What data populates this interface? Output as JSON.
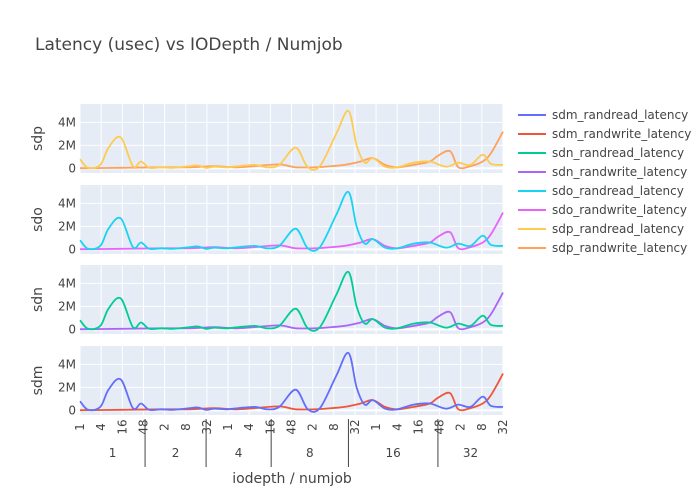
{
  "chart_data": {
    "type": "line",
    "title": "Latency (usec) vs IODepth / Numjob",
    "xlabel": "iodepth / numjob",
    "x_ticks": [
      "1",
      "4",
      "16",
      "48",
      "2",
      "8",
      "32",
      "1",
      "4",
      "16",
      "48",
      "2",
      "8",
      "32",
      "1",
      "4",
      "16",
      "48",
      "2",
      "8",
      "32"
    ],
    "groups": [
      {
        "name": "1",
        "span": [
          0,
          16
        ]
      },
      {
        "name": "2",
        "span": [
          16,
          31
        ]
      },
      {
        "name": "4",
        "span": [
          31,
          47
        ]
      },
      {
        "name": "8",
        "span": [
          47,
          66
        ]
      },
      {
        "name": "16",
        "span": [
          66,
          88
        ]
      },
      {
        "name": "32",
        "span": [
          88,
          104
        ]
      }
    ],
    "y_ticks": [
      0,
      2,
      4
    ],
    "y_tick_labels": [
      "0",
      "2M",
      "4M"
    ],
    "ylim": [
      -0.4,
      5.6
    ],
    "x_range": [
      0,
      104
    ],
    "grid": true,
    "legend_position": "right",
    "subplots": [
      {
        "label": "sdp",
        "series": [
          "sdp_randread_latency",
          "sdp_randwrite_latency"
        ]
      },
      {
        "label": "sdo",
        "series": [
          "sdo_randread_latency",
          "sdo_randwrite_latency"
        ]
      },
      {
        "label": "sdn",
        "series": [
          "sdn_randread_latency",
          "sdn_randwrite_latency"
        ]
      },
      {
        "label": "sdm",
        "series": [
          "sdm_randread_latency",
          "sdm_randwrite_latency"
        ]
      }
    ],
    "series": [
      {
        "name": "sdm_randread_latency",
        "color": "#636efa"
      },
      {
        "name": "sdm_randwrite_latency",
        "color": "#EF553B"
      },
      {
        "name": "sdn_randread_latency",
        "color": "#00cc96"
      },
      {
        "name": "sdn_randwrite_latency",
        "color": "#ab63fa"
      },
      {
        "name": "sdo_randread_latency",
        "color": "#19d3f3"
      },
      {
        "name": "sdo_randwrite_latency",
        "color": "#e763fa"
      },
      {
        "name": "sdp_randread_latency",
        "color": "#FECB52"
      },
      {
        "name": "sdp_randwrite_latency",
        "color": "#FFA15A"
      }
    ],
    "read_values": [
      [
        0,
        0.8
      ],
      [
        2,
        0.05
      ],
      [
        5,
        0.3
      ],
      [
        7,
        1.8
      ],
      [
        10,
        2.7
      ],
      [
        13,
        0.2
      ],
      [
        15,
        0.6
      ],
      [
        17,
        0.05
      ],
      [
        20,
        0.1
      ],
      [
        23,
        0.05
      ],
      [
        27,
        0.2
      ],
      [
        29,
        0.25
      ],
      [
        31,
        0.05
      ],
      [
        33,
        0.15
      ],
      [
        36,
        0.1
      ],
      [
        39,
        0.2
      ],
      [
        43,
        0.3
      ],
      [
        46,
        0.1
      ],
      [
        49,
        0.3
      ],
      [
        53,
        1.8
      ],
      [
        56,
        0.1
      ],
      [
        59,
        0.2
      ],
      [
        63,
        3.0
      ],
      [
        66,
        5.0
      ],
      [
        68,
        2.0
      ],
      [
        70,
        0.5
      ],
      [
        72,
        0.9
      ],
      [
        75,
        0.15
      ],
      [
        78,
        0.1
      ],
      [
        82,
        0.5
      ],
      [
        86,
        0.6
      ],
      [
        90,
        0.15
      ],
      [
        93,
        0.5
      ],
      [
        96,
        0.3
      ],
      [
        99,
        1.2
      ],
      [
        101,
        0.4
      ],
      [
        104,
        0.3
      ]
    ],
    "write_values": [
      [
        0,
        0.02
      ],
      [
        10,
        0.05
      ],
      [
        20,
        0.1
      ],
      [
        27,
        0.1
      ],
      [
        33,
        0.2
      ],
      [
        38,
        0.1
      ],
      [
        43,
        0.2
      ],
      [
        49,
        0.35
      ],
      [
        53,
        0.1
      ],
      [
        58,
        0.1
      ],
      [
        62,
        0.2
      ],
      [
        65,
        0.3
      ],
      [
        69,
        0.6
      ],
      [
        72,
        0.9
      ],
      [
        75,
        0.3
      ],
      [
        78,
        0.1
      ],
      [
        82,
        0.3
      ],
      [
        86,
        0.6
      ],
      [
        88,
        1.1
      ],
      [
        91,
        1.5
      ],
      [
        93,
        0.1
      ],
      [
        96,
        0.2
      ],
      [
        99,
        0.6
      ],
      [
        101,
        1.3
      ],
      [
        104,
        3.2
      ]
    ]
  },
  "legend": {
    "items": [
      "sdm_randread_latency",
      "sdm_randwrite_latency",
      "sdn_randread_latency",
      "sdn_randwrite_latency",
      "sdo_randread_latency",
      "sdo_randwrite_latency",
      "sdp_randread_latency",
      "sdp_randwrite_latency"
    ]
  }
}
